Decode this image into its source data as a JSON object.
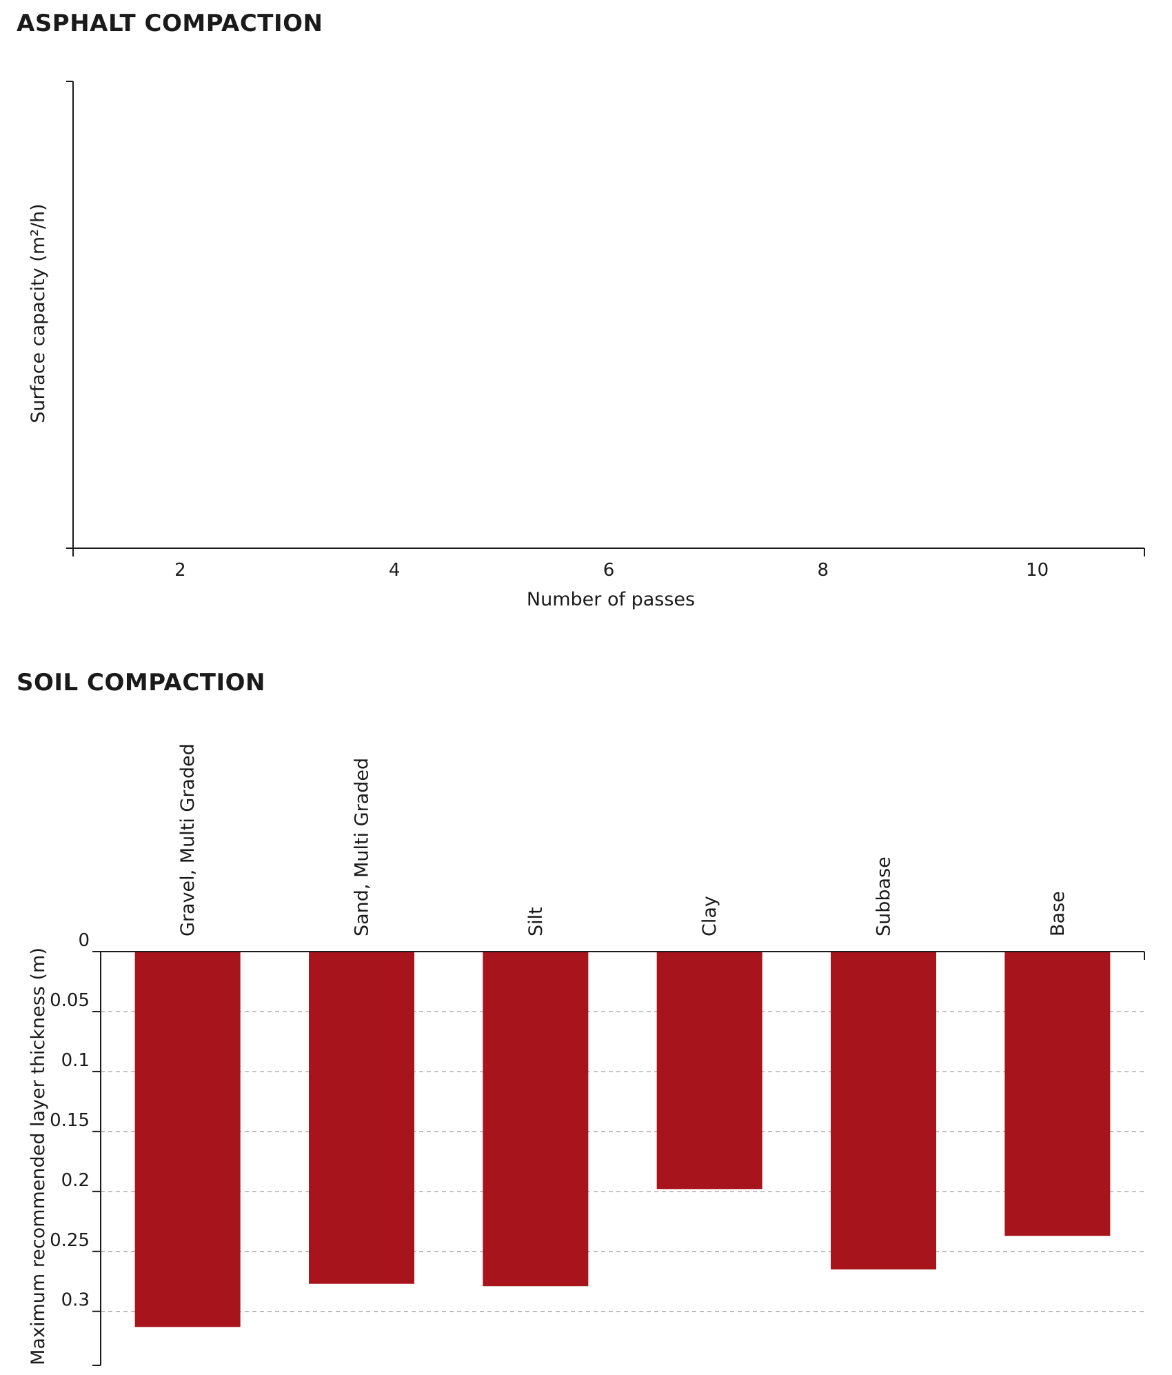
{
  "sections": [
    {
      "title": "ASPHALT COMPACTION"
    },
    {
      "title": "SOIL COMPACTION"
    }
  ],
  "chart_data": [
    {
      "type": "line",
      "title": "ASPHALT COMPACTION",
      "xlabel": "Number of passes",
      "ylabel": "Surface capacity (m²/h)",
      "x_ticks": [
        2,
        4,
        6,
        8,
        10
      ],
      "xlim": [
        1,
        11
      ],
      "series": [],
      "grid": false
    },
    {
      "type": "bar",
      "title": "SOIL COMPACTION",
      "ylabel": "Maximum recommended layer thickness (m)",
      "categories": [
        "Gravel, Multi Graded",
        "Sand, Multi Graded",
        "Silt",
        "Clay",
        "Subbase",
        "Base"
      ],
      "values": [
        0.313,
        0.277,
        0.279,
        0.198,
        0.265,
        0.237
      ],
      "y_ticks": [
        0,
        0.05,
        0.1,
        0.15,
        0.2,
        0.25,
        0.3
      ],
      "ylim": [
        0,
        0.345
      ],
      "y_inverted": true,
      "bar_color": "#a8141c",
      "grid": true,
      "category_labels_position": "top, rotated"
    }
  ]
}
